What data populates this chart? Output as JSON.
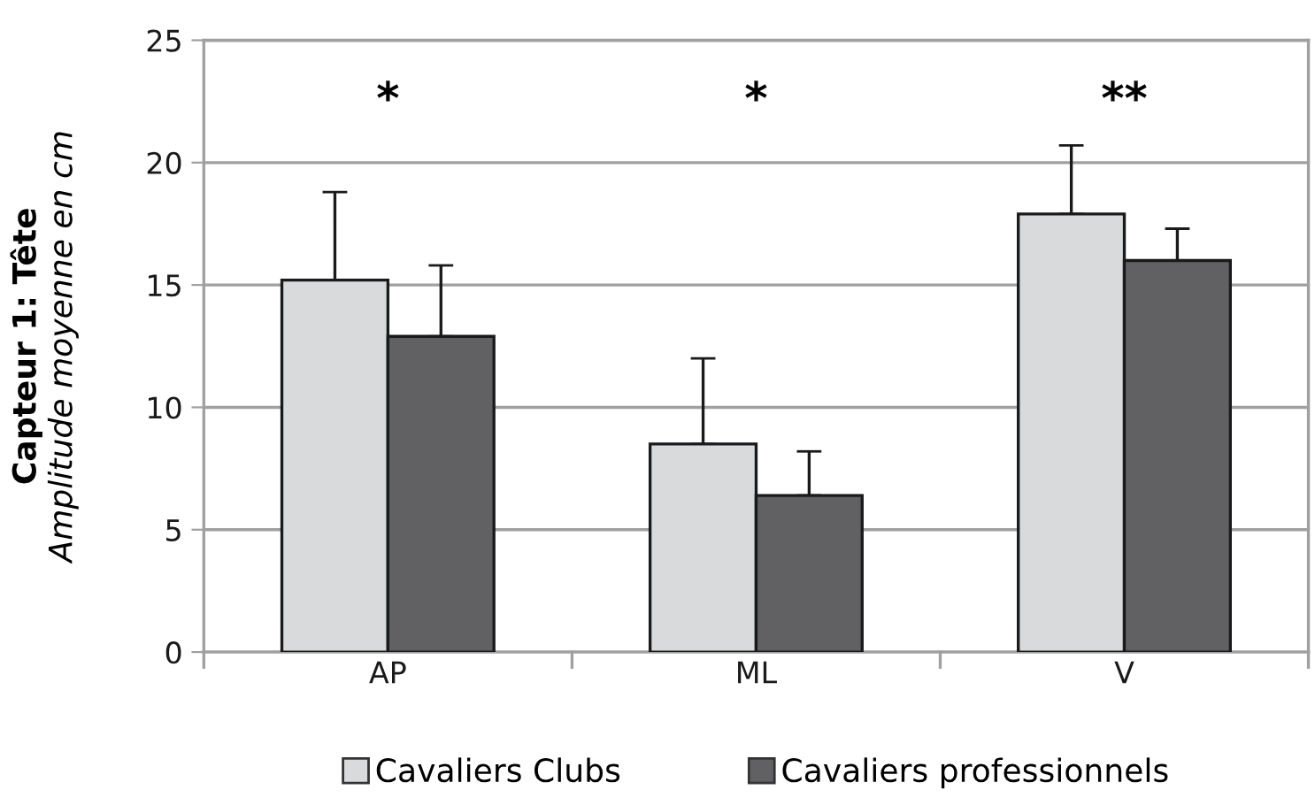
{
  "chart_data": {
    "type": "bar",
    "ylabel": "Capteur 1: Tête\nAmplitude moyenne en cm",
    "categories": [
      "AP",
      "ML",
      "V"
    ],
    "series": [
      {
        "name": "Cavaliers Clubs",
        "color": "#d9dadb",
        "values": [
          15.2,
          8.5,
          17.9
        ],
        "errors": [
          [
            15.2,
            18.8
          ],
          [
            8.5,
            12.0
          ],
          [
            17.9,
            20.7
          ]
        ]
      },
      {
        "name": "Cavaliers professionnels",
        "color": "#616163",
        "values": [
          12.9,
          6.4,
          16.0
        ],
        "errors": [
          [
            12.9,
            15.8
          ],
          [
            6.4,
            8.2
          ],
          [
            16.0,
            17.3
          ]
        ]
      }
    ],
    "ylim": [
      0,
      25
    ],
    "yticks": [
      0,
      5,
      10,
      15,
      20,
      25
    ],
    "grid": "y",
    "legend": "bottom",
    "annotations": [
      "*",
      "*",
      "**"
    ]
  }
}
